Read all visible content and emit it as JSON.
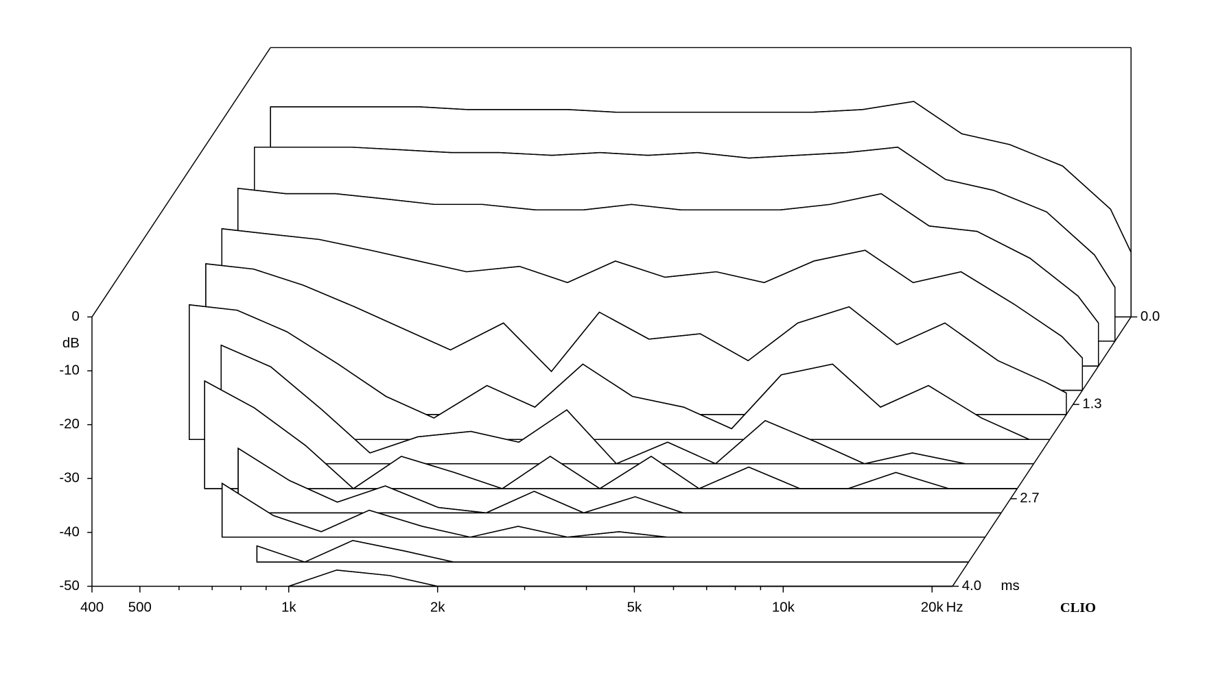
{
  "chart_data": {
    "type": "waterfall",
    "x": [
      400,
      500,
      630,
      800,
      1000,
      1250,
      1600,
      2000,
      2500,
      3150,
      4000,
      5000,
      6300,
      8000,
      10000,
      12500,
      16000,
      20000,
      22000
    ],
    "xlim": [
      400,
      22000
    ],
    "xscale": "log",
    "xticks": [
      400,
      500,
      {
        "value": 1000,
        "label": "1k"
      },
      {
        "value": 2000,
        "label": "2k"
      },
      {
        "value": 5000,
        "label": "5k"
      },
      {
        "value": 10000,
        "label": "10k"
      },
      {
        "value": 20000,
        "label": "20k"
      }
    ],
    "xminor": [
      600,
      700,
      800,
      900,
      3000,
      4000,
      6000,
      7000,
      8000,
      9000
    ],
    "xlabel": "Hz",
    "ylim": [
      -50,
      0
    ],
    "yticks": [
      0,
      -10,
      -20,
      -30,
      -40,
      -50
    ],
    "ylabel": "dB",
    "zlim": [
      0,
      4
    ],
    "zticks": [
      {
        "value": 0,
        "label": "0.0"
      },
      1.3,
      2.7,
      {
        "value": 4,
        "label": "4.0"
      }
    ],
    "zlabel": "ms",
    "z": [
      0,
      0.36,
      0.73,
      1.09,
      1.45,
      1.82,
      2.18,
      2.55,
      2.91,
      3.27,
      3.64,
      4
    ],
    "color": "#000000",
    "watermark": "CLIO",
    "series": [
      {
        "values": [
          -11,
          -11,
          -11,
          -11,
          -11.5,
          -11.5,
          -11.5,
          -12,
          -12,
          -12,
          -12,
          -12,
          -11.5,
          -10,
          -16,
          -18,
          -22,
          -30,
          -38
        ]
      },
      {
        "values": [
          -14,
          -14,
          -14,
          -14.5,
          -15,
          -15,
          -15.5,
          -15,
          -15.5,
          -15,
          -16,
          -15.5,
          -15,
          -14,
          -20,
          -22,
          -26,
          -34,
          -40
        ]
      },
      {
        "values": [
          -17,
          -18,
          -18,
          -19,
          -20,
          -20,
          -21,
          -21,
          -20,
          -21,
          -21,
          -21,
          -20,
          -18,
          -24,
          -25,
          -30,
          -37,
          -42
        ]
      },
      {
        "values": [
          -20,
          -21,
          -22,
          -24,
          -26,
          -28,
          -27,
          -30,
          -26,
          -29,
          -28,
          -30,
          -26,
          -24,
          -30,
          -28,
          -34,
          -40,
          -44
        ]
      },
      {
        "values": [
          -22,
          -23,
          -26,
          -30,
          -34,
          -38,
          -33,
          -42,
          -31,
          -36,
          -35,
          -40,
          -33,
          -30,
          -37,
          -33,
          -40,
          -44,
          -46
        ]
      },
      {
        "values": [
          -25,
          -26,
          -30,
          -36,
          -42,
          -46,
          -40,
          -44,
          -36,
          -42,
          -44,
          -48,
          -38,
          -36,
          -44,
          -40,
          -46,
          -50,
          -50
        ]
      },
      {
        "values": [
          null,
          -28,
          -32,
          -40,
          -48,
          -45,
          -44,
          -46,
          -40,
          -50,
          -46,
          -50,
          -42,
          -46,
          -50,
          -48,
          -50,
          -50,
          -50
        ]
      },
      {
        "values": [
          null,
          -30,
          -35,
          -42,
          -50,
          -44,
          -47,
          -50,
          -44,
          -50,
          -44,
          -50,
          -46,
          -50,
          -50,
          -47,
          -50,
          -50,
          -50
        ]
      },
      {
        "values": [
          null,
          null,
          -38,
          -44,
          -48,
          -45,
          -49,
          -50,
          -46,
          -50,
          -47,
          -50,
          -50,
          -50,
          -50,
          -50,
          -50,
          -50,
          -50
        ]
      },
      {
        "values": [
          null,
          null,
          -40,
          -46,
          -49,
          -45,
          -48,
          -50,
          -48,
          -50,
          -49,
          -50,
          -50,
          -50,
          -50,
          -50,
          -50,
          -50,
          -50
        ]
      },
      {
        "values": [
          null,
          null,
          null,
          -47,
          -50,
          -46,
          -48,
          -50,
          -50,
          -50,
          -50,
          -50,
          -50,
          -50,
          -50,
          -50,
          -50,
          -50,
          -50
        ]
      },
      {
        "values": [
          null,
          null,
          null,
          null,
          -50,
          -47,
          -48,
          -50,
          -50,
          -50,
          -50,
          -50,
          -50,
          -50,
          -50,
          -50,
          -50,
          -50,
          -50
        ]
      }
    ]
  }
}
